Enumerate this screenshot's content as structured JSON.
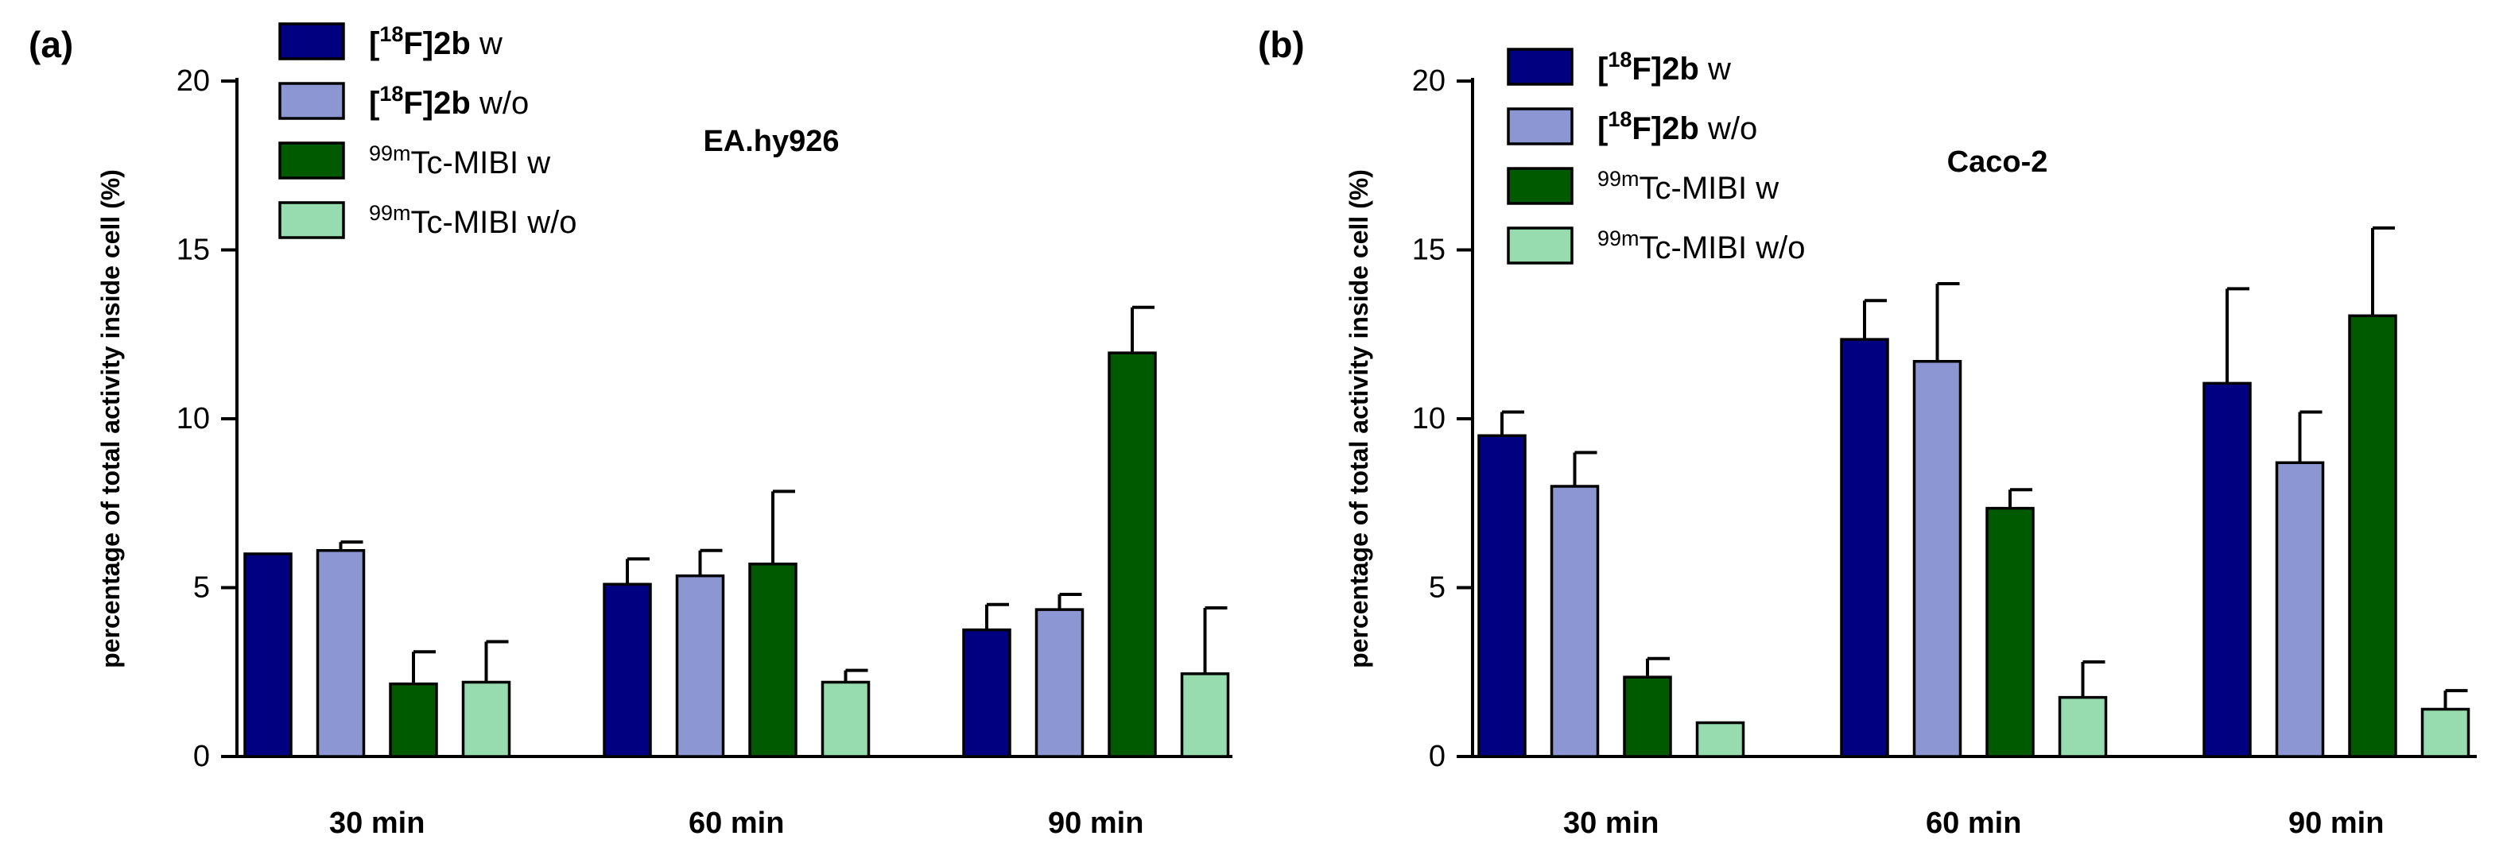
{
  "figure": {
    "colors": {
      "F_w": "#000080",
      "F_wo": "#8c96d2",
      "Tc_w": "#005a00",
      "Tc_wo": "#96dcaf",
      "axis": "#000000"
    },
    "legend_entries": [
      {
        "key": "F_w",
        "prefix": "[",
        "sup": "18",
        "main": "F]",
        "bold_part": "2b",
        "suffix": " w"
      },
      {
        "key": "F_wo",
        "prefix": "[",
        "sup": "18",
        "main": "F]",
        "bold_part": "2b",
        "suffix": " w/o"
      },
      {
        "key": "Tc_w",
        "prefix": "",
        "sup": "99m",
        "main": "Tc-MIBI w",
        "bold_part": "",
        "suffix": ""
      },
      {
        "key": "Tc_wo",
        "prefix": "",
        "sup": "99m",
        "main": "Tc-MIBI w/o",
        "bold_part": "",
        "suffix": ""
      }
    ]
  },
  "chart_data": [
    {
      "type": "bar",
      "panel_label": "(a)",
      "title": "EA.hy926",
      "xlabel": "",
      "ylabel": "percentage of total activity  inside cell (%)",
      "ylim": [
        0,
        20
      ],
      "yticks": [
        0,
        5,
        10,
        15,
        20
      ],
      "categories": [
        "30 min",
        "60 min",
        "90 min"
      ],
      "legend_position": "top-left",
      "series": [
        {
          "name": "[18F]2b w",
          "key": "F_w",
          "values": [
            6.0,
            5.1,
            3.75
          ],
          "errors": [
            0.0,
            0.75,
            0.75
          ]
        },
        {
          "name": "[18F]2b w/o",
          "key": "F_wo",
          "values": [
            6.1,
            5.35,
            4.35
          ],
          "errors": [
            0.25,
            0.75,
            0.45
          ]
        },
        {
          "name": "99mTc-MIBI w",
          "key": "Tc_w",
          "values": [
            2.15,
            5.7,
            11.95
          ],
          "errors": [
            0.95,
            2.15,
            1.35
          ]
        },
        {
          "name": "99mTc-MIBI w/o",
          "key": "Tc_wo",
          "values": [
            2.2,
            2.2,
            2.45
          ],
          "errors": [
            1.2,
            0.35,
            1.95
          ]
        }
      ]
    },
    {
      "type": "bar",
      "panel_label": "(b)",
      "title": "Caco-2",
      "xlabel": "",
      "ylabel": "percentage of total activity  inside cell (%)",
      "ylim": [
        0,
        20
      ],
      "yticks": [
        0,
        5,
        10,
        15,
        20
      ],
      "categories": [
        "30 min",
        "60 min",
        "90 min"
      ],
      "legend_position": "top-left",
      "series": [
        {
          "name": "[18F]2b w",
          "key": "F_w",
          "values": [
            9.5,
            12.35,
            11.05
          ],
          "errors": [
            0.7,
            1.15,
            2.8
          ]
        },
        {
          "name": "[18F]2b w/o",
          "key": "F_wo",
          "values": [
            8.0,
            11.7,
            8.7
          ],
          "errors": [
            1.0,
            2.3,
            1.5
          ]
        },
        {
          "name": "99mTc-MIBI w",
          "key": "Tc_w",
          "values": [
            2.35,
            7.35,
            13.05
          ],
          "errors": [
            0.55,
            0.55,
            2.6
          ]
        },
        {
          "name": "99mTc-MIBI w/o",
          "key": "Tc_wo",
          "values": [
            1.0,
            1.75,
            1.4
          ],
          "errors": [
            0.0,
            1.05,
            0.55
          ]
        }
      ]
    }
  ]
}
